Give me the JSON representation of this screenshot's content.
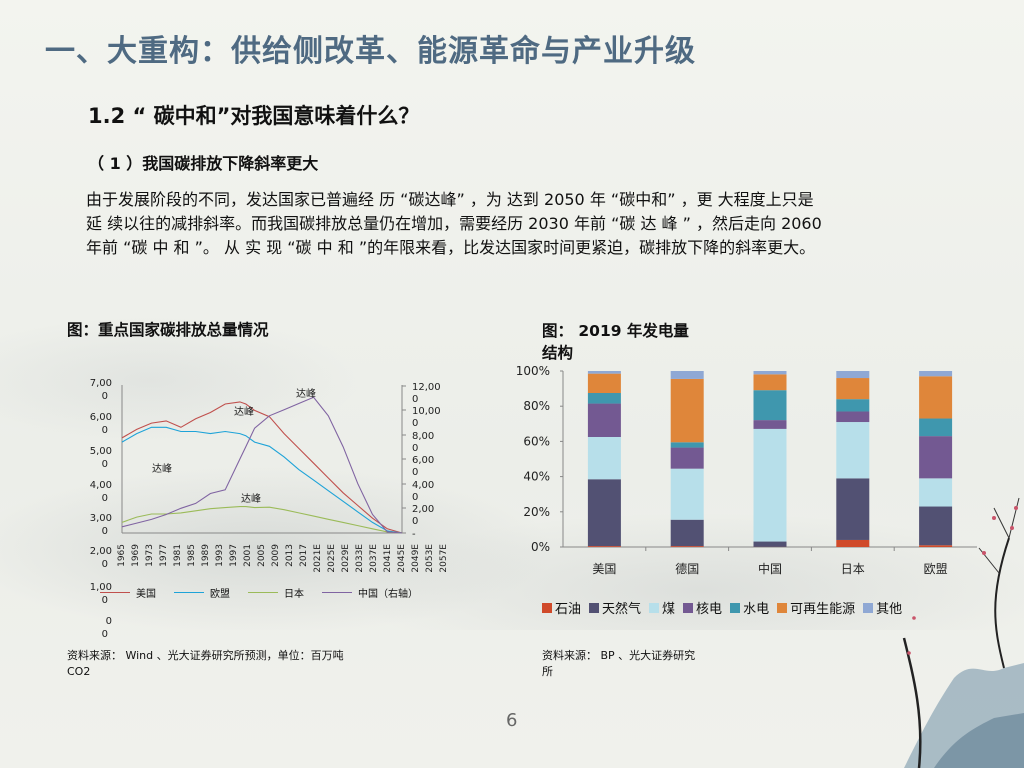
{
  "slide": {
    "title": "一、大重构：供给侧改革、能源革命与产业升级",
    "subtitle": "1.2 “ 碳中和”对我国意味着什么？",
    "section": "（ 1 ）我国碳排放下降斜率更大",
    "paragraph_lines": [
      "由于发展阶段的不同，发达国家已普遍经 历 “碳达峰” ，为 达到 2050 年 “碳中和” ，更 大程度上只是",
      "延 续以往的减排斜率。而我国碳排放总量仍在增加，需要经历 2030 年前 “碳 达 峰 ” ，然后走向 2060",
      "年前 “碳 中 和 ”。 从 实 现 “碳 中 和 ”的年限来看，比发达国家时间更紧迫，碳排放下降的斜率更大。"
    ],
    "page_number": "6"
  },
  "figure_left": {
    "title": "图：重点国家碳排放总量情况",
    "source_line1": "资料来源： Wind 、光大证券研究所预测，单位：百万吨",
    "source_line2": "CO2",
    "peak_label": "达峰"
  },
  "figure_right": {
    "title_line1": "图：  2019 年发电量",
    "title_line2": "结构",
    "source_line1": "资料来源： BP 、光大证券研究",
    "source_line2": "所"
  },
  "chart_data": [
    {
      "type": "line",
      "title": "图：重点国家碳排放总量情况",
      "xlabel": "",
      "ylabel": "百万吨CO2",
      "left_axis_ticks": [
        "7,000",
        "6,000",
        "5,000",
        "4,000",
        "3,000",
        "2,000",
        "1,000",
        "0"
      ],
      "right_axis_ticks": [
        "12,000",
        "10,000",
        "8,000",
        "6,000",
        "4,000",
        "2,000",
        "-"
      ],
      "left_ylim": [
        0,
        7000
      ],
      "right_ylim": [
        0,
        12000
      ],
      "x_tick_labels": [
        "1965",
        "1969",
        "1973",
        "1977",
        "1981",
        "1985",
        "1989",
        "1993",
        "1997",
        "2001",
        "2005",
        "2009",
        "2013",
        "2017",
        "2021E",
        "2025E",
        "2029E",
        "2033E",
        "2037E",
        "2041E",
        "2045E",
        "2049E",
        "2053E",
        "2057E"
      ],
      "x": [
        1965,
        1970,
        1975,
        1980,
        1985,
        1990,
        1995,
        2000,
        2005,
        2007,
        2010,
        2015,
        2020,
        2025,
        2030,
        2035,
        2040,
        2045,
        2050,
        2055,
        2060
      ],
      "series": [
        {
          "name": "美国",
          "axis": "left",
          "color": "#c0504d",
          "values": [
            4500,
            4900,
            5200,
            5300,
            5000,
            5400,
            5700,
            6100,
            6200,
            6100,
            5800,
            5500,
            4700,
            4000,
            3300,
            2600,
            1900,
            1300,
            700,
            200,
            0
          ]
        },
        {
          "name": "欧盟",
          "axis": "left",
          "color": "#1ea3d8",
          "values": [
            4300,
            4700,
            5000,
            5000,
            4800,
            4800,
            4700,
            4800,
            4700,
            4600,
            4300,
            4100,
            3600,
            3000,
            2500,
            2000,
            1500,
            1000,
            500,
            100,
            0
          ]
        },
        {
          "name": "日本",
          "axis": "left",
          "color": "#9bbb59",
          "values": [
            500,
            750,
            900,
            900,
            950,
            1050,
            1150,
            1200,
            1250,
            1250,
            1200,
            1220,
            1100,
            950,
            800,
            650,
            500,
            350,
            200,
            50,
            0
          ]
        },
        {
          "name": "中国（右轴）",
          "axis": "right",
          "color": "#8064a2",
          "values": [
            500,
            800,
            1100,
            1500,
            2000,
            2400,
            3200,
            3500,
            6000,
            7000,
            8500,
            9500,
            10000,
            10500,
            11000,
            9500,
            7000,
            4000,
            1500,
            100,
            0
          ]
        }
      ],
      "annotations": [
        {
          "text": "达峰",
          "near": "欧盟 ~1980"
        },
        {
          "text": "达峰",
          "near": "美国 ~2007"
        },
        {
          "text": "达峰",
          "near": "日本 ~2013"
        },
        {
          "text": "达峰",
          "near": "中国 ~2030"
        }
      ],
      "legend": [
        "美国",
        "欧盟",
        "日本",
        "中国（右轴）"
      ],
      "legend_position": "bottom",
      "grid": false
    },
    {
      "type": "bar",
      "stacked": true,
      "title": "图：2019 年发电量结构",
      "categories": [
        "美国",
        "德国",
        "中国",
        "日本",
        "欧盟"
      ],
      "y_tick_labels": [
        "0%",
        "20%",
        "40%",
        "60%",
        "80%",
        "100%"
      ],
      "ylim": [
        0,
        100
      ],
      "series": [
        {
          "name": "石油",
          "color": "#d04a2a",
          "values": [
            0.5,
            0.5,
            0.1,
            4,
            1
          ]
        },
        {
          "name": "天然气",
          "color": "#525173",
          "values": [
            38,
            15,
            3,
            35,
            22
          ]
        },
        {
          "name": "煤",
          "color": "#b7dfea",
          "values": [
            24,
            29,
            64,
            32,
            16
          ]
        },
        {
          "name": "核电",
          "color": "#735992",
          "values": [
            19,
            12,
            5,
            6,
            24
          ]
        },
        {
          "name": "水电",
          "color": "#3f97ae",
          "values": [
            6,
            3,
            17,
            7,
            10
          ]
        },
        {
          "name": "可再生能源",
          "color": "#df863a",
          "values": [
            11,
            36,
            9,
            12,
            24
          ]
        },
        {
          "name": "其他",
          "color": "#8fa8d4",
          "values": [
            1.5,
            4.5,
            1.9,
            4,
            3
          ]
        }
      ],
      "legend": [
        "石油",
        "天然气",
        "煤",
        "核电",
        "水电",
        "可再生能源",
        "其他"
      ],
      "legend_position": "bottom",
      "grid": false
    }
  ]
}
